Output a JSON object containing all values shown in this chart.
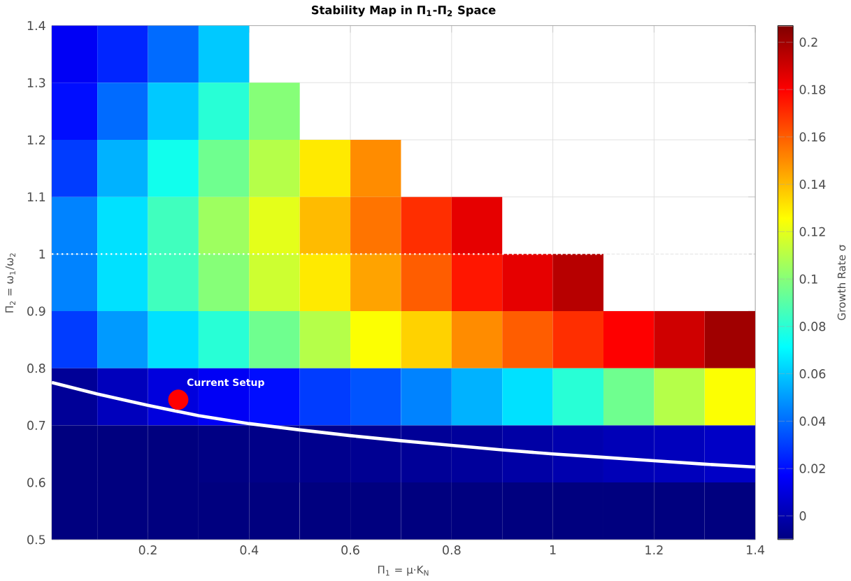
{
  "chart_data": {
    "type": "heatmap",
    "title": "Stability Map in Π$_{1}$-Π$_{2}$ Space",
    "xlabel": "Π$_{1}$ = μ·K$_{N}$",
    "ylabel": "Π$_{2}$ = ω$_{1}$/ω$_{2}$",
    "clabel": "Growth Rate σ",
    "x": [
      0.05,
      0.15,
      0.25,
      0.35,
      0.45,
      0.55,
      0.65,
      0.75,
      0.85,
      0.95,
      1.05,
      1.15,
      1.25,
      1.35
    ],
    "y": [
      1.35,
      1.25,
      1.15,
      1.05,
      0.95,
      0.85,
      0.75,
      0.65,
      0.55
    ],
    "cells": [
      [
        0.015,
        0.025,
        0.04,
        0.06,
        null,
        null,
        null,
        null,
        null,
        null,
        null,
        null,
        null,
        null
      ],
      [
        0.02,
        0.04,
        0.06,
        0.08,
        0.1,
        null,
        null,
        null,
        null,
        null,
        null,
        null,
        null,
        null
      ],
      [
        0.03,
        0.055,
        0.075,
        0.095,
        0.11,
        0.13,
        0.15,
        null,
        null,
        null,
        null,
        null,
        null,
        null
      ],
      [
        0.045,
        0.065,
        0.085,
        0.105,
        0.12,
        0.14,
        0.155,
        0.17,
        0.185,
        null,
        null,
        null,
        null,
        null
      ],
      [
        0.045,
        0.065,
        0.085,
        0.1,
        0.115,
        0.13,
        0.145,
        0.16,
        0.175,
        0.185,
        0.195,
        null,
        null,
        null
      ],
      [
        0.03,
        0.05,
        0.065,
        0.08,
        0.095,
        0.11,
        0.125,
        0.135,
        0.15,
        0.16,
        0.17,
        0.18,
        0.19,
        0.2
      ],
      [
        -0.005,
        0.003,
        0.01,
        0.015,
        0.02,
        0.03,
        0.035,
        0.045,
        0.055,
        0.065,
        0.08,
        0.095,
        0.11,
        0.125
      ],
      [
        -0.01,
        -0.01,
        -0.01,
        -0.009,
        -0.008,
        -0.007,
        -0.006,
        -0.005,
        -0.004,
        -0.002,
        0.0,
        0.002,
        0.003,
        0.005
      ],
      [
        -0.01,
        -0.01,
        -0.01,
        -0.01,
        -0.01,
        -0.01,
        -0.01,
        -0.01,
        -0.01,
        -0.01,
        -0.01,
        -0.01,
        -0.01,
        -0.01
      ]
    ],
    "clim": [
      -0.01,
      0.207
    ],
    "cticks": [
      0,
      0.02,
      0.04,
      0.06,
      0.08,
      0.1,
      0.12,
      0.14,
      0.16,
      0.18,
      0.2
    ],
    "series": [
      {
        "type": "line",
        "color": "#ffffff",
        "line_style": "solid",
        "x": [
          0.01,
          0.1,
          0.2,
          0.3,
          0.4,
          0.5,
          0.6,
          0.7,
          0.8,
          0.9,
          1.0,
          1.1,
          1.2,
          1.3,
          1.4
        ],
        "values": [
          0.775,
          0.755,
          0.735,
          0.717,
          0.703,
          0.692,
          0.682,
          0.673,
          0.665,
          0.657,
          0.65,
          0.644,
          0.638,
          0.632,
          0.627
        ]
      },
      {
        "type": "scatter",
        "color": "#ff0000",
        "marker": "circle",
        "x": [
          0.26
        ],
        "values": [
          0.745
        ]
      }
    ],
    "annotations": [
      {
        "text": "Current Setup",
        "x": 0.26,
        "y": 0.745
      }
    ],
    "ref_lines": [
      {
        "axis": "y",
        "value": 1,
        "color": "#ffffff",
        "line_style": "dotted"
      }
    ],
    "grid": true,
    "xlim": [
      0.01,
      1.4
    ],
    "xticks": [
      0.2,
      0.4,
      0.6,
      0.8,
      1,
      1.2,
      1.4
    ],
    "ylim": [
      0.5,
      1.4
    ],
    "yticks": [
      0.5,
      0.6,
      0.7,
      0.8,
      0.9,
      1,
      1.1,
      1.2,
      1.3,
      1.4
    ]
  }
}
